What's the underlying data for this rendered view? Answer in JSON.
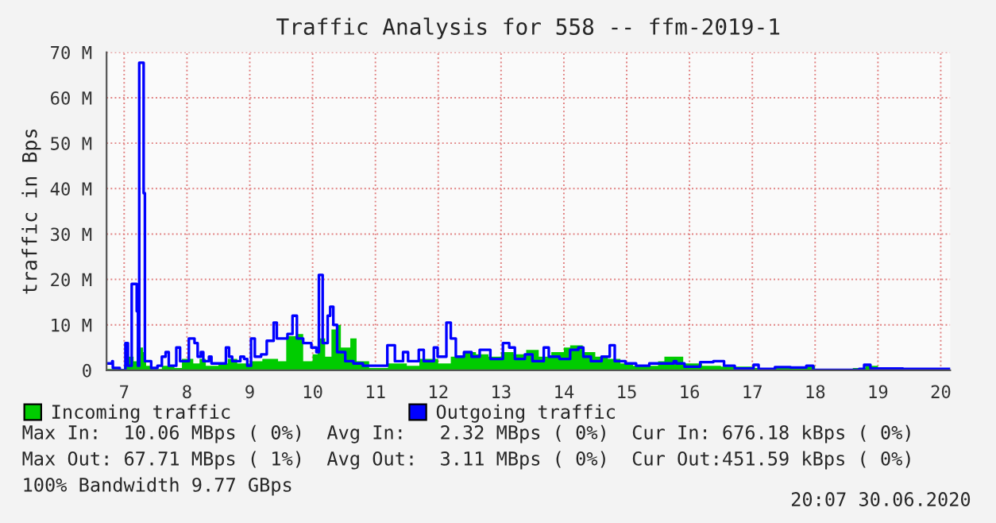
{
  "chart_data": {
    "type": "step",
    "title": "Traffic Analysis for 558 -- ffm-2019-1",
    "ylabel": "traffic in Bps",
    "xlim": [
      6.72,
      20.15
    ],
    "xticks": [
      7,
      8,
      9,
      10,
      11,
      12,
      13,
      14,
      15,
      16,
      17,
      18,
      19,
      20
    ],
    "ylim": [
      0,
      70
    ],
    "yticks": [
      {
        "value": 0,
        "label": "0"
      },
      {
        "value": 10,
        "label": "10 M"
      },
      {
        "value": 20,
        "label": "20 M"
      },
      {
        "value": 30,
        "label": "30 M"
      },
      {
        "value": 40,
        "label": "40 M"
      },
      {
        "value": 50,
        "label": "50 M"
      },
      {
        "value": 60,
        "label": "60 M"
      },
      {
        "value": 70,
        "label": "70 M"
      }
    ],
    "grid": true,
    "legend": "bottom",
    "series": [
      {
        "name": "Incoming traffic",
        "type": "area",
        "color": "#00cc00",
        "x": [
          6.73,
          7.0,
          7.05,
          7.15,
          7.2,
          7.3,
          7.35,
          7.45,
          7.6,
          7.8,
          7.92,
          8.1,
          8.2,
          8.3,
          8.5,
          8.65,
          8.8,
          9.0,
          9.2,
          9.45,
          9.58,
          9.75,
          9.85,
          10.0,
          10.08,
          10.2,
          10.3,
          10.4,
          10.45,
          10.6,
          10.7,
          10.9,
          11.2,
          11.5,
          11.7,
          12.0,
          12.2,
          12.4,
          12.6,
          12.8,
          13.0,
          13.2,
          13.4,
          13.6,
          13.8,
          14.0,
          14.1,
          14.3,
          14.5,
          14.7,
          14.9,
          15.1,
          15.5,
          15.6,
          15.75,
          15.9,
          16.2,
          16.5,
          17.0,
          17.5,
          17.85,
          18.0,
          18.6,
          18.8,
          19.0,
          19.4,
          19.6,
          20.15
        ],
        "values": [
          0.3,
          1,
          3,
          2,
          5,
          4,
          1,
          0.3,
          1,
          0.5,
          2.5,
          1.5,
          2.5,
          1,
          1.5,
          2.5,
          1.5,
          2,
          2.5,
          2,
          7.5,
          8,
          2,
          3.5,
          7,
          3,
          9,
          10,
          5,
          7,
          2,
          0.5,
          1.5,
          1,
          2.5,
          1.5,
          3,
          4,
          3.5,
          3,
          4,
          3.5,
          4.5,
          3,
          4,
          5,
          5.5,
          4,
          3,
          2.5,
          1.5,
          1,
          2,
          3,
          3,
          1.5,
          1,
          0.8,
          0.5,
          0.5,
          1,
          0.1,
          0.5,
          1,
          0.3,
          0.5,
          0.2,
          0.2
        ]
      },
      {
        "name": "Outgoing traffic",
        "color": "#0000ff",
        "x": [
          6.73,
          6.81,
          6.82,
          6.93,
          7.02,
          7.06,
          7.12,
          7.2,
          7.22,
          7.24,
          7.31,
          7.33,
          7.43,
          7.53,
          7.6,
          7.66,
          7.71,
          7.83,
          7.89,
          8.03,
          8.12,
          8.17,
          8.22,
          8.26,
          8.35,
          8.39,
          8.62,
          8.67,
          8.72,
          8.85,
          8.91,
          8.96,
          9.02,
          9.08,
          9.18,
          9.27,
          9.38,
          9.43,
          9.6,
          9.68,
          9.75,
          9.85,
          9.98,
          10.06,
          10.1,
          10.16,
          10.24,
          10.28,
          10.33,
          10.39,
          10.52,
          10.65,
          10.8,
          10.97,
          11.19,
          11.31,
          11.44,
          11.52,
          11.69,
          11.77,
          11.93,
          11.99,
          12.13,
          12.2,
          12.28,
          12.41,
          12.53,
          12.66,
          12.83,
          13.03,
          13.13,
          13.22,
          13.38,
          13.5,
          13.68,
          13.76,
          13.93,
          14.1,
          14.23,
          14.31,
          14.43,
          14.6,
          14.73,
          14.81,
          14.98,
          15.15,
          15.36,
          15.62,
          15.75,
          15.79,
          15.92,
          16.17,
          16.38,
          16.55,
          16.72,
          17.02,
          17.1,
          17.36,
          17.61,
          17.86,
          17.97,
          18.7,
          18.78,
          18.88,
          19.4,
          20.15
        ],
        "values": [
          1.5,
          2,
          0.5,
          0,
          6,
          1,
          19,
          13,
          1,
          67.7,
          39,
          2,
          0.5,
          1,
          3,
          4,
          1,
          5,
          2,
          7,
          6,
          3,
          4,
          2,
          3,
          1.5,
          5,
          3,
          2,
          3,
          2.5,
          1,
          7,
          3,
          3.5,
          6.5,
          10.5,
          7,
          8,
          12,
          7,
          6,
          5,
          4,
          21,
          6,
          12,
          14,
          10,
          4,
          2,
          1.5,
          1,
          1,
          5.5,
          2,
          4,
          2,
          4.5,
          2,
          5,
          3,
          10.5,
          7,
          3,
          4,
          3,
          4.5,
          2.5,
          6,
          5,
          2.5,
          3.5,
          2,
          5,
          3,
          2.5,
          4.5,
          5,
          3,
          2,
          3,
          5.5,
          2,
          1.5,
          1,
          1.5,
          1.5,
          2,
          1.5,
          0.8,
          1.8,
          2,
          1,
          0.4,
          1.2,
          0.3,
          0.7,
          0.6,
          1,
          0.1,
          0.3,
          1.2,
          0.4,
          0.3,
          0.2
        ]
      }
    ],
    "annotations": [
      "Max In:  10.06 MBps ( 0%)  Avg In:   2.32 MBps ( 0%)  Cur In: 676.18 kBps ( 0%)",
      "Max Out: 67.71 MBps ( 1%)  Avg Out:  3.11 MBps ( 0%)  Cur Out:451.59 kBps ( 0%)",
      "100% Bandwidth 9.77 GBps",
      "20:07 30.06.2020"
    ]
  }
}
